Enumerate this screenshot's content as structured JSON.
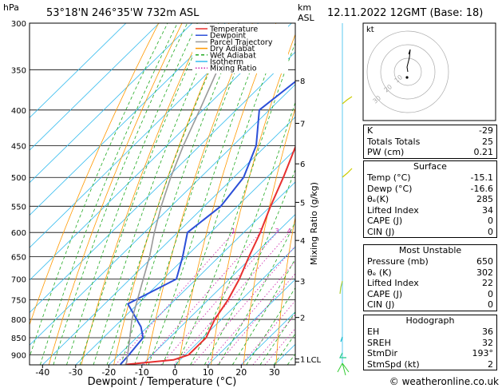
{
  "header": {
    "location": "53°18'N  246°35'W  732m  ASL",
    "date": "12.11.2022  12GMT  (Base: 18)",
    "pressure_unit": "hPa",
    "km_unit": "km",
    "asl_unit": "ASL"
  },
  "footer": {
    "credit": "© weatheronline.co.uk"
  },
  "chart_data": {
    "type": "line",
    "xlabel": "Dewpoint / Temperature (°C)",
    "ylabel": "",
    "right_axis_label": "Mixing Ratio (g/kg)",
    "x_ticks": [
      -40,
      -30,
      -20,
      -10,
      0,
      10,
      20,
      30
    ],
    "pressure_ticks": [
      300,
      350,
      400,
      450,
      500,
      550,
      600,
      650,
      700,
      750,
      800,
      850,
      900
    ],
    "pressure_range": [
      300,
      930
    ],
    "x_range_at_bottom": [
      -42,
      38
    ],
    "km_ticks": [
      {
        "label": "1",
        "p": 912
      },
      {
        "label": "2",
        "p": 795
      },
      {
        "label": "3",
        "p": 705
      },
      {
        "label": "4",
        "p": 616
      },
      {
        "label": "5",
        "p": 543
      },
      {
        "label": "6",
        "p": 478
      },
      {
        "label": "7",
        "p": 418
      },
      {
        "label": "8",
        "p": 363
      }
    ],
    "lcl_label": "LCL",
    "lcl_pressure": 922,
    "mixing_ratio_labels": [
      "1",
      "2",
      "3",
      "4",
      "6",
      "8",
      "10",
      "16",
      "20",
      "25"
    ],
    "mixing_ratio_values": [
      1,
      2,
      3,
      4,
      6,
      8,
      10,
      16,
      20,
      25
    ],
    "mixing_ratio_label_pressure": 600,
    "legend": [
      "Temperature",
      "Dewpoint",
      "Parcel Trajectory",
      "Dry Adiabat",
      "Wet Adiabat",
      "Isotherm",
      "Mixing Ratio"
    ],
    "colors": {
      "temperature": "#e8302f",
      "dewpoint": "#2b4fd8",
      "parcel": "#999999",
      "dry_adiabat": "#ff9900",
      "wet_adiabat": "#22aa22",
      "isotherm": "#33bbee",
      "mixing_ratio": "#cc22aa"
    },
    "series": [
      {
        "name": "Temperature",
        "points": [
          [
            929,
            -15
          ],
          [
            915,
            -2
          ],
          [
            900,
            1
          ],
          [
            850,
            1
          ],
          [
            800,
            -2
          ],
          [
            750,
            -4
          ],
          [
            700,
            -7
          ],
          [
            650,
            -11
          ],
          [
            600,
            -15
          ],
          [
            550,
            -20
          ],
          [
            500,
            -25
          ],
          [
            450,
            -31
          ],
          [
            400,
            -37
          ],
          [
            350,
            -45
          ],
          [
            300,
            -53
          ]
        ]
      },
      {
        "name": "Dewpoint",
        "points": [
          [
            929,
            -16.6
          ],
          [
            900,
            -17
          ],
          [
            850,
            -18
          ],
          [
            820,
            -22
          ],
          [
            760,
            -33
          ],
          [
            700,
            -26
          ],
          [
            650,
            -31
          ],
          [
            600,
            -37
          ],
          [
            550,
            -35
          ],
          [
            500,
            -37
          ],
          [
            450,
            -43
          ],
          [
            400,
            -53
          ],
          [
            350,
            -50
          ],
          [
            300,
            -58
          ]
        ]
      },
      {
        "name": "Parcel Trajectory",
        "points": [
          [
            929,
            -15.1
          ],
          [
            922,
            -15.4
          ],
          [
            850,
            -22
          ],
          [
            800,
            -27
          ],
          [
            700,
            -36
          ],
          [
            650,
            -41
          ],
          [
            600,
            -47
          ],
          [
            550,
            -53
          ],
          [
            500,
            -59
          ],
          [
            450,
            -65
          ],
          [
            400,
            -71
          ],
          [
            350,
            -78
          ],
          [
            300,
            -86
          ]
        ]
      }
    ]
  },
  "hodograph": {
    "label": "kt",
    "rings": [
      "10",
      "20",
      "30"
    ]
  },
  "indices": {
    "rows": [
      {
        "label": "K",
        "value": "-29"
      },
      {
        "label": "Totals Totals",
        "value": "25"
      },
      {
        "label": "PW (cm)",
        "value": "0.21"
      }
    ]
  },
  "surface": {
    "title": "Surface",
    "rows": [
      {
        "label": "Temp (°C)",
        "value": "-15.1"
      },
      {
        "label": "Dewp (°C)",
        "value": "-16.6"
      },
      {
        "label": "θₑ(K)",
        "value": "285"
      },
      {
        "label": "Lifted Index",
        "value": "34"
      },
      {
        "label": "CAPE (J)",
        "value": "0"
      },
      {
        "label": "CIN (J)",
        "value": "0"
      }
    ]
  },
  "most_unstable": {
    "title": "Most Unstable",
    "rows": [
      {
        "label": "Pressure (mb)",
        "value": "650"
      },
      {
        "label": "θₑ (K)",
        "value": "302"
      },
      {
        "label": "Lifted Index",
        "value": "22"
      },
      {
        "label": "CAPE (J)",
        "value": "0"
      },
      {
        "label": "CIN (J)",
        "value": "0"
      }
    ]
  },
  "hodograph_table": {
    "title": "Hodograph",
    "rows": [
      {
        "label": "EH",
        "value": "36"
      },
      {
        "label": "SREH",
        "value": "32"
      },
      {
        "label": "StmDir",
        "value": "193°"
      },
      {
        "label": "StmSpd (kt)",
        "value": "2"
      }
    ]
  }
}
